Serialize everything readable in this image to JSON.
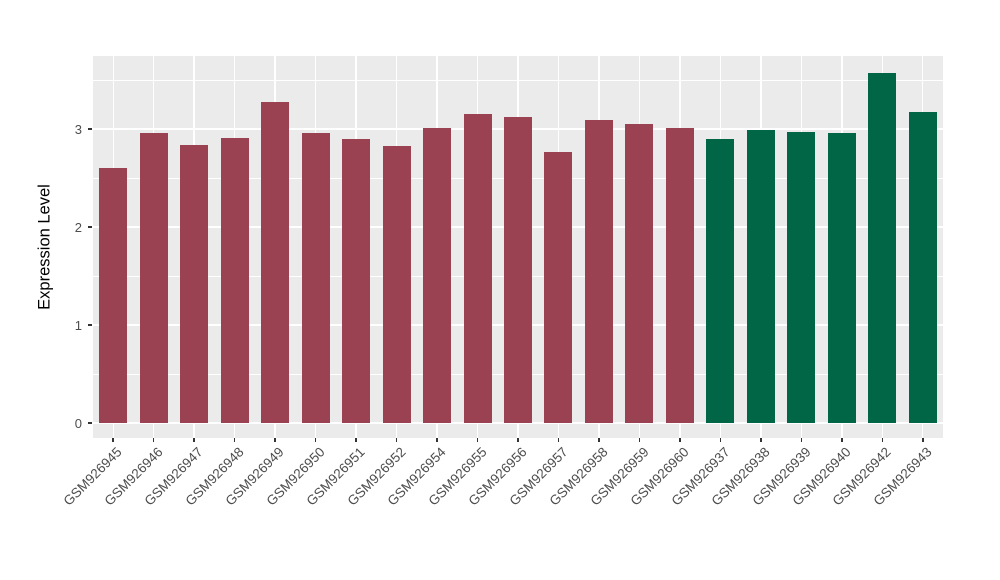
{
  "chart_data": {
    "type": "bar",
    "title": "",
    "xlabel": "",
    "ylabel": "Expression Level",
    "categories": [
      "GSM926945",
      "GSM926946",
      "GSM926947",
      "GSM926948",
      "GSM926949",
      "GSM926950",
      "GSM926951",
      "GSM926952",
      "GSM926954",
      "GSM926955",
      "GSM926956",
      "GSM926957",
      "GSM926958",
      "GSM926959",
      "GSM926960",
      "GSM926937",
      "GSM926938",
      "GSM926939",
      "GSM926940",
      "GSM926942",
      "GSM926943"
    ],
    "values": [
      2.6,
      2.96,
      2.84,
      2.91,
      3.28,
      2.96,
      2.9,
      2.83,
      3.01,
      3.15,
      3.12,
      2.77,
      3.09,
      3.05,
      3.01,
      2.9,
      2.99,
      2.97,
      2.96,
      3.57,
      3.17
    ],
    "bar_colors": [
      "#9B4252",
      "#9B4252",
      "#9B4252",
      "#9B4252",
      "#9B4252",
      "#9B4252",
      "#9B4252",
      "#9B4252",
      "#9B4252",
      "#9B4252",
      "#9B4252",
      "#9B4252",
      "#9B4252",
      "#9B4252",
      "#9B4252",
      "#006646",
      "#006646",
      "#006646",
      "#006646",
      "#006646",
      "#006646"
    ],
    "yticks": [
      0,
      1,
      2,
      3
    ],
    "ylim": [
      0,
      3.75
    ],
    "grid": true,
    "legend": false,
    "panel_background": "#EBEBEB",
    "grid_color": "#FFFFFF",
    "tick_label_color": "#4D4D4D",
    "axis_title_color": "#000000"
  }
}
